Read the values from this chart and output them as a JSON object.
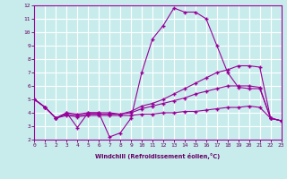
{
  "xlabel": "Windchill (Refroidissement éolien,°C)",
  "bg_color": "#c8ecec",
  "grid_color": "#ffffff",
  "line_color": "#990099",
  "ylim": [
    2,
    12
  ],
  "xlim": [
    0,
    23
  ],
  "yticks": [
    2,
    3,
    4,
    5,
    6,
    7,
    8,
    9,
    10,
    11,
    12
  ],
  "xticks": [
    0,
    1,
    2,
    3,
    4,
    5,
    6,
    7,
    8,
    9,
    10,
    11,
    12,
    13,
    14,
    15,
    16,
    17,
    18,
    19,
    20,
    21,
    22,
    23
  ],
  "line1_x": [
    0,
    1,
    2,
    3,
    4,
    5,
    6,
    7,
    8,
    9,
    10,
    11,
    12,
    13,
    14,
    15,
    16,
    17,
    18,
    19,
    20,
    21,
    22,
    23
  ],
  "line1_y": [
    5.0,
    4.4,
    3.6,
    4.0,
    2.9,
    4.0,
    4.0,
    2.2,
    2.5,
    3.6,
    7.0,
    9.5,
    10.5,
    11.8,
    11.5,
    11.5,
    11.0,
    9.0,
    7.0,
    5.9,
    5.8,
    5.8,
    3.6,
    3.4
  ],
  "line2_x": [
    0,
    1,
    2,
    3,
    4,
    5,
    6,
    7,
    8,
    9,
    10,
    11,
    12,
    13,
    14,
    15,
    16,
    17,
    18,
    19,
    20,
    21,
    22,
    23
  ],
  "line2_y": [
    5.0,
    4.4,
    3.6,
    4.0,
    3.9,
    4.0,
    4.0,
    4.0,
    3.9,
    4.1,
    4.5,
    4.7,
    5.0,
    5.4,
    5.8,
    6.2,
    6.6,
    7.0,
    7.2,
    7.5,
    7.5,
    7.4,
    3.6,
    3.4
  ],
  "line3_x": [
    0,
    1,
    2,
    3,
    4,
    5,
    6,
    7,
    8,
    9,
    10,
    11,
    12,
    13,
    14,
    15,
    16,
    17,
    18,
    19,
    20,
    21,
    22,
    23
  ],
  "line3_y": [
    5.0,
    4.4,
    3.6,
    3.9,
    3.8,
    3.9,
    3.9,
    3.9,
    3.9,
    4.0,
    4.3,
    4.5,
    4.7,
    4.9,
    5.1,
    5.4,
    5.6,
    5.8,
    6.0,
    6.0,
    6.0,
    5.9,
    3.6,
    3.4
  ],
  "line4_x": [
    0,
    1,
    2,
    3,
    4,
    5,
    6,
    7,
    8,
    9,
    10,
    11,
    12,
    13,
    14,
    15,
    16,
    17,
    18,
    19,
    20,
    21,
    22,
    23
  ],
  "line4_y": [
    5.0,
    4.4,
    3.6,
    3.8,
    3.7,
    3.8,
    3.8,
    3.8,
    3.8,
    3.8,
    3.9,
    3.9,
    4.0,
    4.0,
    4.1,
    4.1,
    4.2,
    4.3,
    4.4,
    4.4,
    4.5,
    4.4,
    3.6,
    3.4
  ]
}
